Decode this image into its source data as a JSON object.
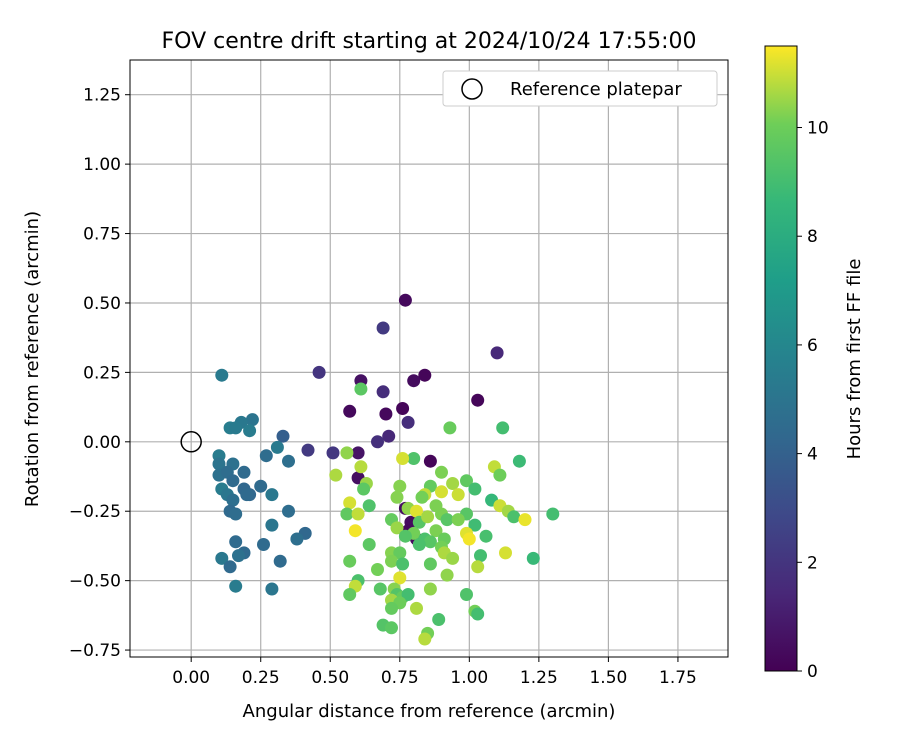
{
  "chart_data": {
    "type": "scatter",
    "title": "FOV centre drift starting at 2024/10/24 17:55:00",
    "xlabel": "Angular distance from reference (arcmin)",
    "ylabel": "Rotation from reference (arcmin)",
    "xlim": [
      -0.22,
      1.93
    ],
    "ylim": [
      -0.775,
      1.375
    ],
    "xticks": [
      0.0,
      0.25,
      0.5,
      0.75,
      1.0,
      1.25,
      1.5,
      1.75
    ],
    "xtick_labels": [
      "0.00",
      "0.25",
      "0.50",
      "0.75",
      "1.00",
      "1.25",
      "1.50",
      "1.75"
    ],
    "yticks": [
      -0.75,
      -0.5,
      -0.25,
      0.0,
      0.25,
      0.5,
      0.75,
      1.0,
      1.25
    ],
    "ytick_labels": [
      "−0.75",
      "−0.50",
      "−0.25",
      "0.00",
      "0.25",
      "0.50",
      "0.75",
      "1.00",
      "1.25"
    ],
    "grid": true,
    "legend": {
      "position": "top-right",
      "label": "Reference platepar"
    },
    "reference": {
      "x": 0.0,
      "y": 0.0
    },
    "colorbar": {
      "label": "Hours from first FF file",
      "range": [
        0,
        11.5
      ],
      "ticks": [
        0,
        2,
        4,
        6,
        8,
        10
      ],
      "tick_labels": [
        "0",
        "2",
        "4",
        "6",
        "8",
        "10"
      ],
      "colormap": "viridis"
    },
    "points": [
      [
        0.77,
        0.51,
        0.3
      ],
      [
        0.69,
        0.41,
        2.2
      ],
      [
        1.1,
        0.32,
        1.5
      ],
      [
        0.46,
        0.25,
        2.0
      ],
      [
        0.84,
        0.24,
        0.2
      ],
      [
        0.61,
        0.22,
        0.6
      ],
      [
        0.8,
        0.22,
        0.4
      ],
      [
        0.69,
        0.18,
        1.7
      ],
      [
        1.03,
        0.15,
        0.2
      ],
      [
        0.57,
        0.11,
        0.3
      ],
      [
        0.76,
        0.12,
        0.2
      ],
      [
        0.7,
        0.1,
        0.3
      ],
      [
        0.78,
        0.07,
        1.7
      ],
      [
        0.71,
        0.02,
        1.5
      ],
      [
        0.67,
        0.0,
        1.8
      ],
      [
        0.6,
        -0.04,
        0.7
      ],
      [
        0.51,
        -0.04,
        2.1
      ],
      [
        0.42,
        -0.03,
        2.2
      ],
      [
        0.86,
        -0.07,
        0.2
      ],
      [
        0.6,
        -0.13,
        0.5
      ],
      [
        0.77,
        -0.24,
        0.5
      ],
      [
        0.79,
        -0.29,
        0.4
      ],
      [
        0.81,
        -0.35,
        0.4
      ],
      [
        0.78,
        -0.32,
        0.3
      ],
      [
        0.11,
        0.24,
        5.3
      ],
      [
        0.22,
        0.08,
        5.0
      ],
      [
        0.18,
        0.07,
        5.2
      ],
      [
        0.14,
        0.05,
        5.5
      ],
      [
        0.16,
        0.05,
        5.3
      ],
      [
        0.21,
        0.04,
        5.4
      ],
      [
        0.33,
        0.02,
        3.9
      ],
      [
        0.31,
        -0.02,
        5.3
      ],
      [
        0.27,
        -0.05,
        4.6
      ],
      [
        0.1,
        -0.05,
        5.4
      ],
      [
        0.1,
        -0.08,
        5.0
      ],
      [
        0.15,
        -0.08,
        4.8
      ],
      [
        0.35,
        -0.07,
        4.7
      ],
      [
        0.1,
        -0.12,
        4.8
      ],
      [
        0.13,
        -0.11,
        4.6
      ],
      [
        0.19,
        -0.11,
        4.5
      ],
      [
        0.15,
        -0.14,
        4.4
      ],
      [
        0.11,
        -0.17,
        5.4
      ],
      [
        0.19,
        -0.17,
        4.3
      ],
      [
        0.13,
        -0.19,
        5.1
      ],
      [
        0.21,
        -0.19,
        4.3
      ],
      [
        0.25,
        -0.16,
        4.5
      ],
      [
        0.15,
        -0.21,
        4.7
      ],
      [
        0.2,
        -0.19,
        4.4
      ],
      [
        0.29,
        -0.19,
        5.2
      ],
      [
        0.14,
        -0.25,
        4.4
      ],
      [
        0.16,
        -0.26,
        4.6
      ],
      [
        0.35,
        -0.25,
        4.6
      ],
      [
        0.29,
        -0.3,
        5.1
      ],
      [
        0.41,
        -0.33,
        4.3
      ],
      [
        0.38,
        -0.35,
        4.7
      ],
      [
        0.16,
        -0.36,
        4.5
      ],
      [
        0.26,
        -0.37,
        4.5
      ],
      [
        0.19,
        -0.4,
        4.4
      ],
      [
        0.17,
        -0.41,
        4.8
      ],
      [
        0.11,
        -0.42,
        5.2
      ],
      [
        0.32,
        -0.43,
        4.5
      ],
      [
        0.14,
        -0.45,
        4.4
      ],
      [
        0.16,
        -0.52,
        5.4
      ],
      [
        0.29,
        -0.53,
        5.1
      ],
      [
        0.61,
        0.19,
        9.6
      ],
      [
        0.93,
        0.05,
        9.9
      ],
      [
        1.12,
        0.05,
        9.0
      ],
      [
        0.56,
        -0.04,
        10.4
      ],
      [
        0.8,
        -0.06,
        9.3
      ],
      [
        0.76,
        -0.06,
        11.1
      ],
      [
        0.61,
        -0.09,
        10.8
      ],
      [
        1.18,
        -0.07,
        8.8
      ],
      [
        0.52,
        -0.12,
        10.7
      ],
      [
        1.09,
        -0.09,
        10.9
      ],
      [
        0.9,
        -0.11,
        10.2
      ],
      [
        0.94,
        -0.15,
        10.6
      ],
      [
        0.99,
        -0.14,
        9.7
      ],
      [
        1.11,
        -0.12,
        10.0
      ],
      [
        0.63,
        -0.15,
        10.5
      ],
      [
        0.75,
        -0.16,
        10.3
      ],
      [
        0.86,
        -0.16,
        9.8
      ],
      [
        0.62,
        -0.17,
        9.6
      ],
      [
        0.84,
        -0.19,
        10.9
      ],
      [
        0.9,
        -0.18,
        11.1
      ],
      [
        0.96,
        -0.19,
        11.0
      ],
      [
        1.02,
        -0.17,
        9.0
      ],
      [
        0.74,
        -0.2,
        10.3
      ],
      [
        0.83,
        -0.2,
        10.1
      ],
      [
        1.08,
        -0.21,
        8.6
      ],
      [
        1.11,
        -0.23,
        11.0
      ],
      [
        0.57,
        -0.22,
        11.1
      ],
      [
        0.64,
        -0.23,
        9.3
      ],
      [
        0.78,
        -0.24,
        10.4
      ],
      [
        0.88,
        -0.23,
        10.2
      ],
      [
        1.14,
        -0.25,
        10.6
      ],
      [
        0.56,
        -0.26,
        9.7
      ],
      [
        0.81,
        -0.25,
        11.2
      ],
      [
        0.9,
        -0.26,
        10.2
      ],
      [
        0.99,
        -0.26,
        9.5
      ],
      [
        1.16,
        -0.27,
        9.2
      ],
      [
        1.2,
        -0.28,
        11.3
      ],
      [
        1.3,
        -0.26,
        9.0
      ],
      [
        0.6,
        -0.26,
        10.9
      ],
      [
        0.72,
        -0.28,
        9.8
      ],
      [
        0.82,
        -0.29,
        9.5
      ],
      [
        0.85,
        -0.27,
        10.6
      ],
      [
        0.92,
        -0.28,
        9.5
      ],
      [
        0.74,
        -0.31,
        10.5
      ],
      [
        0.96,
        -0.28,
        10.2
      ],
      [
        1.02,
        -0.3,
        8.9
      ],
      [
        0.59,
        -0.32,
        11.4
      ],
      [
        0.8,
        -0.33,
        10.1
      ],
      [
        0.88,
        -0.32,
        10.2
      ],
      [
        0.99,
        -0.33,
        11.2
      ],
      [
        1.06,
        -0.34,
        9.1
      ],
      [
        0.77,
        -0.34,
        9.4
      ],
      [
        0.84,
        -0.35,
        9.2
      ],
      [
        0.86,
        -0.36,
        9.5
      ],
      [
        0.91,
        -0.35,
        9.9
      ],
      [
        1.0,
        -0.35,
        11.4
      ],
      [
        0.64,
        -0.37,
        9.6
      ],
      [
        0.82,
        -0.37,
        9.2
      ],
      [
        0.9,
        -0.38,
        10.1
      ],
      [
        0.72,
        -0.4,
        10.3
      ],
      [
        0.75,
        -0.4,
        9.8
      ],
      [
        1.13,
        -0.4,
        11.1
      ],
      [
        0.91,
        -0.4,
        10.7
      ],
      [
        0.94,
        -0.42,
        10.5
      ],
      [
        1.04,
        -0.41,
        9.0
      ],
      [
        1.23,
        -0.42,
        8.7
      ],
      [
        0.57,
        -0.43,
        9.9
      ],
      [
        0.72,
        -0.43,
        10.2
      ],
      [
        0.76,
        -0.44,
        9.2
      ],
      [
        0.86,
        -0.44,
        9.7
      ],
      [
        1.03,
        -0.45,
        10.8
      ],
      [
        0.67,
        -0.46,
        10.1
      ],
      [
        0.92,
        -0.48,
        10.4
      ],
      [
        0.75,
        -0.49,
        11.2
      ],
      [
        0.6,
        -0.5,
        9.2
      ],
      [
        0.59,
        -0.52,
        10.9
      ],
      [
        0.68,
        -0.53,
        9.5
      ],
      [
        0.73,
        -0.53,
        10.3
      ],
      [
        0.86,
        -0.53,
        10.4
      ],
      [
        0.57,
        -0.55,
        9.7
      ],
      [
        0.74,
        -0.55,
        9.4
      ],
      [
        0.76,
        -0.56,
        9.8
      ],
      [
        0.78,
        -0.55,
        9.0
      ],
      [
        0.99,
        -0.55,
        9.3
      ],
      [
        0.72,
        -0.57,
        10.6
      ],
      [
        0.75,
        -0.58,
        10.0
      ],
      [
        0.72,
        -0.6,
        9.8
      ],
      [
        0.81,
        -0.6,
        10.7
      ],
      [
        1.02,
        -0.61,
        10.1
      ],
      [
        1.03,
        -0.62,
        9.0
      ],
      [
        0.89,
        -0.64,
        9.2
      ],
      [
        0.69,
        -0.66,
        9.4
      ],
      [
        0.72,
        -0.67,
        9.6
      ],
      [
        0.85,
        -0.69,
        10.1
      ],
      [
        0.84,
        -0.71,
        10.8
      ]
    ]
  }
}
